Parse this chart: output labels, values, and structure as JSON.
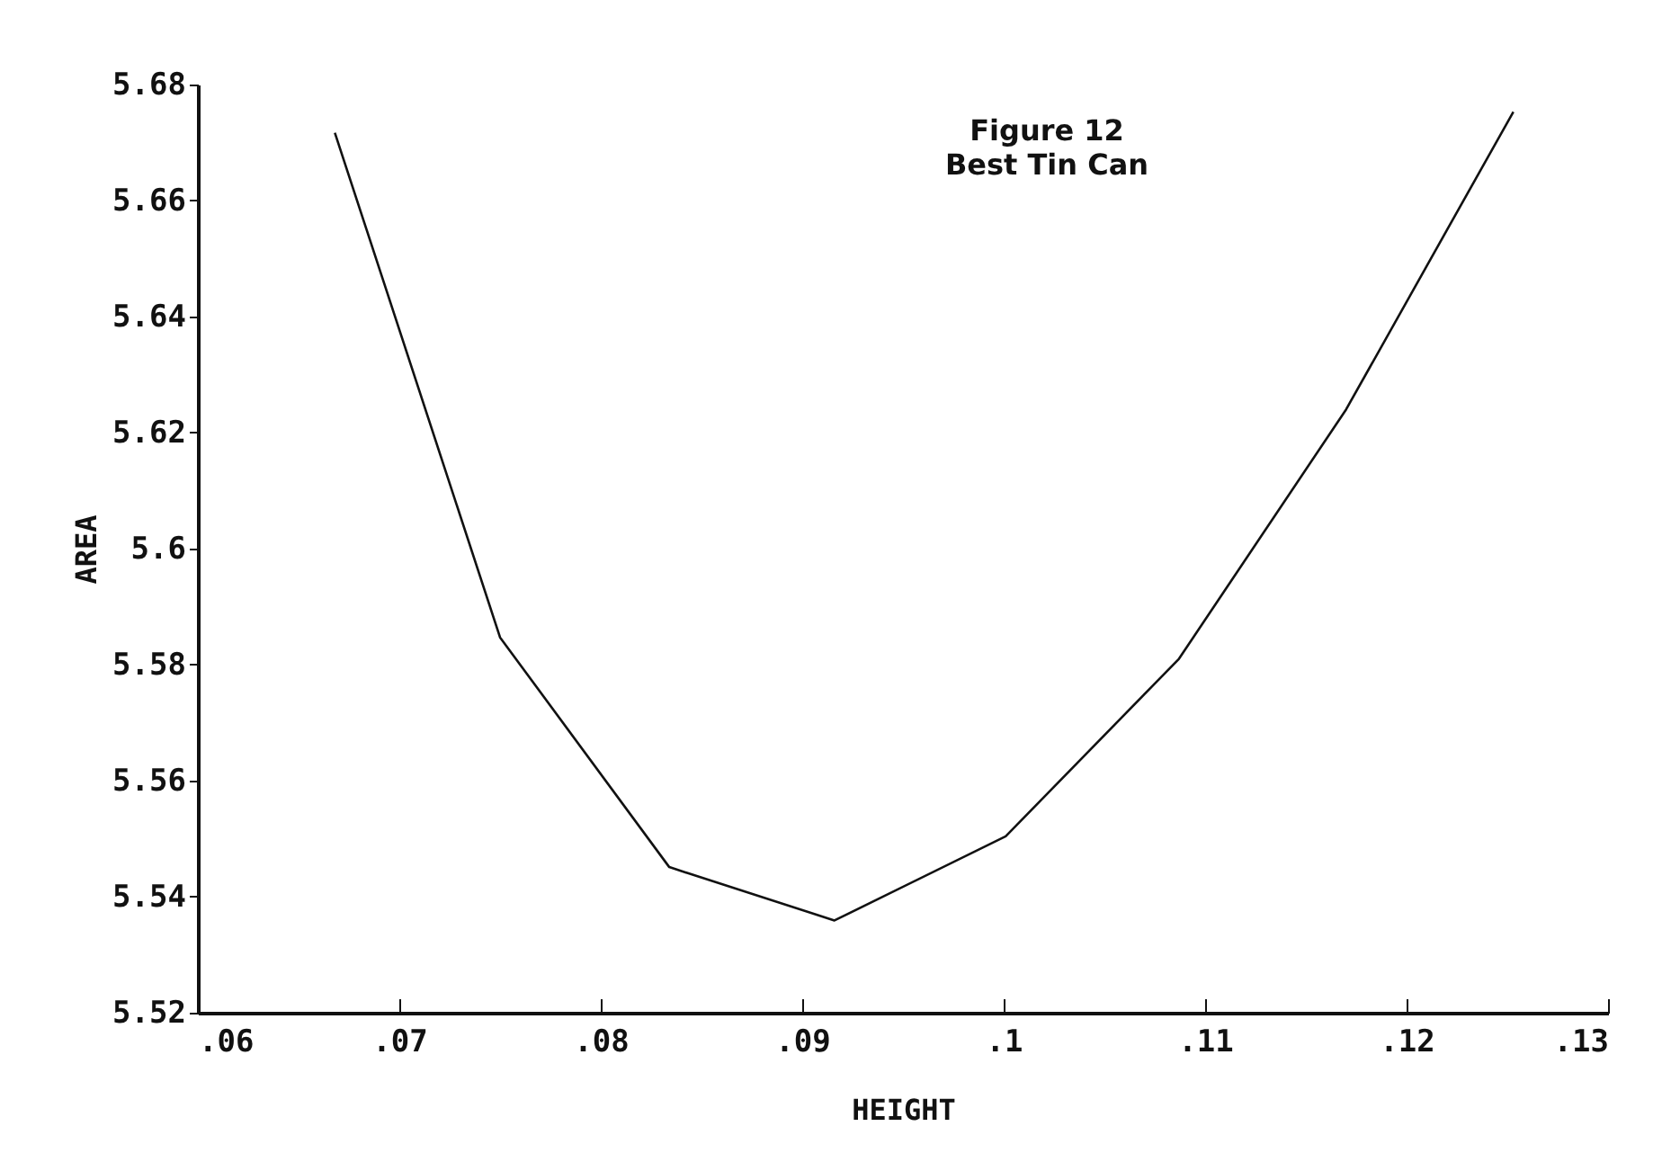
{
  "chart_data": {
    "type": "line",
    "title": "Figure 12",
    "subtitle": "Best Tin Can",
    "xlabel": "HEIGHT",
    "ylabel": "AREA",
    "x": [
      0.0668,
      0.075,
      0.0834,
      0.0916,
      0.1001,
      0.1087,
      0.117,
      0.1253
    ],
    "series": [
      {
        "color": "#111111",
        "values": [
          5.6717,
          5.5847,
          5.5451,
          5.5359,
          5.5504,
          5.581,
          5.624,
          5.6753
        ]
      }
    ],
    "xlim": [
      0.06,
      0.13
    ],
    "xticks": [
      {
        "value": 0.06,
        "label": ".06"
      },
      {
        "value": 0.07,
        "label": ".07"
      },
      {
        "value": 0.08,
        "label": ".08"
      },
      {
        "value": 0.09,
        "label": ".09"
      },
      {
        "value": 0.1,
        "label": ".1"
      },
      {
        "value": 0.11,
        "label": ".11"
      },
      {
        "value": 0.12,
        "label": ".12"
      },
      {
        "value": 0.13,
        "label": ".13"
      }
    ],
    "ylim": [
      5.52,
      5.68
    ],
    "yticks": [
      5.52,
      5.54,
      5.56,
      5.58,
      {
        "value": 5.6,
        "label": "5.6"
      },
      5.62,
      5.64,
      5.66,
      5.68
    ],
    "grid": false,
    "legend": false,
    "marker": "none",
    "line_style": "solid"
  }
}
